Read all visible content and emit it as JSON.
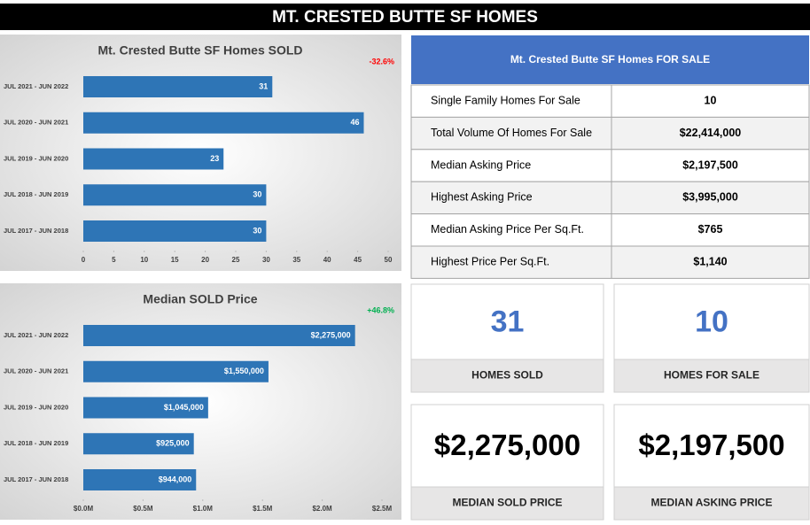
{
  "header": {
    "title": "MT. CRESTED BUTTE SF HOMES"
  },
  "chart_data": [
    {
      "type": "hbar",
      "title": "Mt. Crested Butte SF Homes SOLD",
      "annotation": "-32.6%",
      "annotation_color": "#ff0000",
      "categories": [
        "JUL 2021 - JUN 2022",
        "JUL 2020 - JUN 2021",
        "JUL 2019 - JUN 2020",
        "JUL 2018 - JUN 2019",
        "JUL 2017 - JUN 2018"
      ],
      "values": [
        31,
        46,
        23,
        30,
        30
      ],
      "color": "#2e75b6",
      "xlim": [
        0,
        50
      ],
      "xticks": [
        0,
        5,
        10,
        15,
        20,
        25,
        30,
        35,
        40,
        45,
        50
      ]
    },
    {
      "type": "hbar",
      "title": "Median SOLD Price",
      "annotation": "+46.8%",
      "annotation_color": "#00b050",
      "categories": [
        "JUL 2021 - JUN 2022",
        "JUL 2020 - JUN 2021",
        "JUL 2019 - JUN 2020",
        "JUL 2018 - JUN 2019",
        "JUL 2017 - JUN 2018"
      ],
      "values": [
        2275000,
        1550000,
        1045000,
        925000,
        944000
      ],
      "value_labels": [
        "$2,275,000",
        "$1,550,000",
        "$1,045,000",
        "$925,000",
        "$944,000"
      ],
      "color": "#2e75b6",
      "xlim": [
        0,
        2500000
      ],
      "xticks": [
        {
          "value": 0,
          "label": "$0.0M"
        },
        {
          "value": 500000,
          "label": "$0.5M"
        },
        {
          "value": 1000000,
          "label": "$1.0M"
        },
        {
          "value": 1500000,
          "label": "$1.5M"
        },
        {
          "value": 2000000,
          "label": "$2.0M"
        },
        {
          "value": 2500000,
          "label": "$2.5M"
        }
      ]
    }
  ],
  "table": {
    "title": "Mt. Crested Butte SF Homes FOR SALE",
    "rows": [
      [
        "Single Family Homes For Sale",
        "10"
      ],
      [
        "Total Volume Of Homes For Sale",
        "$22,414,000"
      ],
      [
        "Median Asking Price",
        "$2,197,500"
      ],
      [
        "Highest Asking Price",
        "$3,995,000"
      ],
      [
        "Median Asking Price Per Sq.Ft.",
        "$765"
      ],
      [
        "Highest Price Per Sq.Ft.",
        "$1,140"
      ]
    ]
  },
  "cards": [
    {
      "value": "31",
      "label": "HOMES SOLD"
    },
    {
      "value": "10",
      "label": "HOMES FOR SALE"
    },
    {
      "value": "$2,275,000",
      "label": "MEDIAN SOLD PRICE"
    },
    {
      "value": "$2,197,500",
      "label": "MEDIAN ASKING PRICE"
    }
  ]
}
